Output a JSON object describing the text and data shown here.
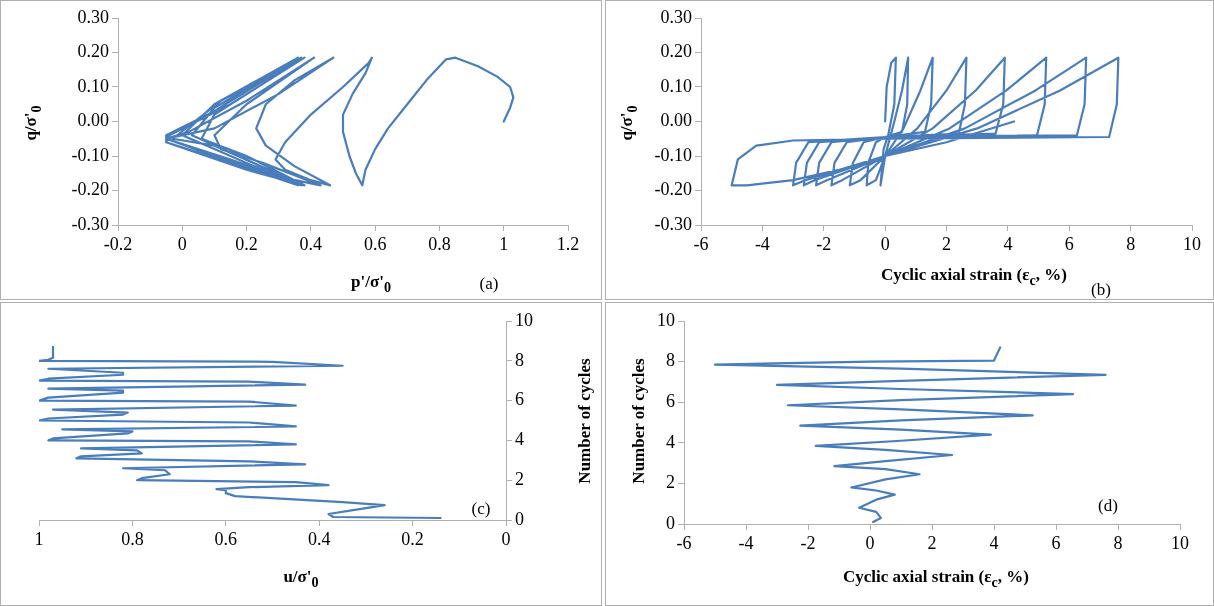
{
  "chart_data": [
    {
      "type": "line",
      "xlabel": "p'/σ'$_{0}$",
      "ylabel": "q/σ'$_{0}$",
      "annotations": [
        "(a)"
      ],
      "marker": "none",
      "grid": false,
      "xlim": [
        -0.2,
        1.2
      ],
      "xticks": [
        -0.2,
        0,
        0.2,
        0.4,
        0.6,
        0.8,
        1,
        1.2
      ],
      "ylim": [
        -0.3,
        0.3
      ],
      "yticks": [
        {
          "value": -0.3,
          "label": "-0.30"
        },
        {
          "value": -0.2,
          "label": "-0.20"
        },
        {
          "value": -0.1,
          "label": "-0.10"
        },
        {
          "value": 0,
          "label": "0.00"
        },
        {
          "value": 0.1,
          "label": "0.10"
        },
        {
          "value": 0.2,
          "label": "0.20"
        },
        {
          "value": 0.3,
          "label": "0.30"
        }
      ],
      "series": [
        {
          "color": "#4a7dbb",
          "x": [
            1.0,
            1.02,
            1.03,
            1.02,
            0.98,
            0.92,
            0.85,
            0.82,
            0.76,
            0.7,
            0.64,
            0.6,
            0.57,
            0.56,
            0.54,
            0.52,
            0.5,
            0.5,
            0.53,
            0.57,
            0.59,
            0.58,
            0.5,
            0.4,
            0.32,
            0.29,
            0.32,
            0.4,
            0.46,
            0.35,
            0.26,
            0.23,
            0.26,
            0.35,
            0.47,
            0.3,
            0.1,
            -0.05,
            0.1,
            0.3,
            0.43,
            0.25,
            0.12,
            0.1,
            0.2,
            0.41,
            0.2,
            0.02,
            -0.05,
            0.15,
            0.38,
            0.2,
            0.06,
            0.1,
            0.38,
            0.15,
            -0.04,
            -0.05,
            0.15,
            0.37,
            0.15,
            0.03,
            0.1,
            0.37,
            0.1,
            -0.05,
            -0.05,
            0.15,
            0.36,
            0.1,
            0.0,
            0.1,
            0.36,
            0.1,
            -0.05,
            -0.05,
            0.2,
            0.38,
            0.1,
            -0.03,
            0.12,
            0.37
          ],
          "values": [
            0.0,
            0.04,
            0.07,
            0.1,
            0.13,
            0.16,
            0.185,
            0.18,
            0.12,
            0.05,
            -0.02,
            -0.08,
            -0.14,
            -0.185,
            -0.15,
            -0.1,
            -0.03,
            0.02,
            0.08,
            0.14,
            0.185,
            0.17,
            0.1,
            0.02,
            -0.06,
            -0.11,
            -0.14,
            -0.17,
            -0.185,
            -0.13,
            -0.07,
            -0.02,
            0.05,
            0.12,
            0.185,
            0.08,
            -0.02,
            -0.05,
            -0.1,
            -0.16,
            -0.185,
            -0.12,
            -0.08,
            -0.04,
            0.05,
            0.185,
            0.06,
            -0.03,
            -0.05,
            -0.11,
            -0.185,
            -0.1,
            -0.05,
            0.02,
            0.185,
            0.05,
            -0.04,
            -0.06,
            -0.12,
            -0.185,
            -0.09,
            -0.04,
            0.04,
            0.185,
            0.03,
            -0.045,
            -0.06,
            -0.12,
            -0.185,
            -0.08,
            -0.04,
            0.05,
            0.185,
            0.03,
            -0.04,
            -0.06,
            -0.14,
            -0.185,
            -0.07,
            -0.05,
            0.06,
            0.18
          ]
        }
      ]
    },
    {
      "type": "line",
      "xlabel": "Cyclic axial strain (ε$_{c}$, %)",
      "ylabel": "q/σ'$_{0}$",
      "annotations": [
        "(b)"
      ],
      "marker": "none",
      "grid": false,
      "xlim": [
        -6,
        10
      ],
      "xticks": [
        -6,
        -4,
        -2,
        0,
        2,
        4,
        6,
        8,
        10
      ],
      "ylim": [
        -0.3,
        0.3
      ],
      "yticks": [
        {
          "value": -0.3,
          "label": "-0.30"
        },
        {
          "value": -0.2,
          "label": "-0.20"
        },
        {
          "value": -0.1,
          "label": "-0.10"
        },
        {
          "value": 0,
          "label": "0.00"
        },
        {
          "value": 0.1,
          "label": "0.10"
        },
        {
          "value": 0.2,
          "label": "0.20"
        },
        {
          "value": 0.3,
          "label": "0.30"
        }
      ],
      "series": [
        {
          "color": "#4a7dbb",
          "x": [
            0,
            0.05,
            0.2,
            0.35,
            0.3,
            0.1,
            -0.05,
            -0.15,
            0,
            0.3,
            0.55,
            0.75,
            0.72,
            0.55,
            0,
            -0.3,
            -0.55,
            -0.6,
            -0.3,
            0,
            0.6,
            1.15,
            1.55,
            1.5,
            1.3,
            0,
            -0.7,
            -1.05,
            -1.15,
            -0.8,
            0,
            1.05,
            2.0,
            2.65,
            2.6,
            2.4,
            0,
            -1.25,
            -1.65,
            -1.75,
            -1.4,
            0,
            1.55,
            2.95,
            3.9,
            3.85,
            3.6,
            0,
            -1.75,
            -2.15,
            -2.25,
            -1.9,
            0,
            2.1,
            3.95,
            5.25,
            5.2,
            4.95,
            0,
            -2.15,
            -2.55,
            -2.65,
            -2.3,
            0,
            2.6,
            4.9,
            6.55,
            6.5,
            6.25,
            0,
            -2.5,
            -2.9,
            -3.0,
            -2.6,
            0,
            3.0,
            5.7,
            7.6,
            7.55,
            7.3,
            0,
            -3,
            -4.2,
            -4.8,
            -5.0,
            -4.5,
            -3,
            -1,
            0,
            2,
            4.2
          ],
          "values": [
            0,
            0.1,
            0.17,
            0.185,
            0.05,
            -0.04,
            -0.08,
            -0.185,
            -0.1,
            0.0,
            0.09,
            0.185,
            0.05,
            -0.03,
            -0.045,
            -0.06,
            -0.12,
            -0.185,
            -0.17,
            -0.1,
            -0.02,
            0.09,
            0.185,
            0.05,
            -0.03,
            -0.045,
            -0.06,
            -0.12,
            -0.185,
            -0.17,
            -0.1,
            -0.02,
            0.09,
            0.185,
            0.05,
            -0.035,
            -0.045,
            -0.06,
            -0.12,
            -0.185,
            -0.17,
            -0.1,
            -0.02,
            0.09,
            0.185,
            0.05,
            -0.035,
            -0.045,
            -0.06,
            -0.12,
            -0.185,
            -0.17,
            -0.1,
            -0.02,
            0.09,
            0.185,
            0.05,
            -0.04,
            -0.045,
            -0.06,
            -0.12,
            -0.185,
            -0.17,
            -0.1,
            -0.02,
            0.09,
            0.185,
            0.05,
            -0.04,
            -0.045,
            -0.06,
            -0.12,
            -0.185,
            -0.17,
            -0.1,
            -0.02,
            0.09,
            0.185,
            0.05,
            -0.045,
            -0.05,
            -0.055,
            -0.07,
            -0.11,
            -0.185,
            -0.185,
            -0.17,
            -0.13,
            -0.1,
            -0.06,
            0.0
          ]
        }
      ]
    },
    {
      "type": "line",
      "xlabel": "u/σ'$_{0}$",
      "ylabel": "Number of cycles",
      "annotations": [
        "(c)"
      ],
      "marker": "none",
      "grid": false,
      "xlim": [
        1,
        0
      ],
      "xticks": [
        1,
        0.8,
        0.6,
        0.4,
        0.2,
        0
      ],
      "ylim": [
        0,
        10
      ],
      "yticks": [
        0,
        2,
        4,
        6,
        8,
        10
      ],
      "series": [
        {
          "color": "#4a7dbb",
          "x": [
            0.14,
            0.37,
            0.38,
            0.3,
            0.26,
            0.35,
            0.58,
            0.6,
            0.6,
            0.62,
            0.55,
            0.38,
            0.45,
            0.79,
            0.78,
            0.72,
            0.73,
            0.82,
            0.43,
            0.55,
            0.92,
            0.91,
            0.78,
            0.79,
            0.91,
            0.45,
            0.55,
            0.98,
            0.97,
            0.81,
            0.8,
            0.95,
            0.45,
            0.55,
            1.0,
            0.98,
            0.82,
            0.81,
            0.97,
            0.45,
            0.55,
            1.0,
            0.98,
            0.82,
            0.82,
            0.98,
            0.43,
            0.55,
            1.0,
            0.98,
            0.82,
            0.82,
            0.98,
            0.35,
            0.5,
            1.0,
            0.98,
            0.97,
            0.97
          ],
          "values": [
            0.1,
            0.15,
            0.3,
            0.6,
            0.75,
            0.9,
            1.2,
            1.35,
            1.5,
            1.55,
            1.65,
            1.75,
            1.9,
            2.0,
            2.1,
            2.3,
            2.5,
            2.6,
            2.8,
            2.95,
            3.1,
            3.2,
            3.35,
            3.5,
            3.6,
            3.8,
            3.95,
            4.0,
            4.1,
            4.35,
            4.45,
            4.55,
            4.7,
            4.9,
            5.0,
            5.1,
            5.3,
            5.4,
            5.55,
            5.75,
            5.95,
            6.0,
            6.15,
            6.4,
            6.5,
            6.6,
            6.8,
            6.95,
            7.0,
            7.1,
            7.3,
            7.4,
            7.6,
            7.75,
            7.95,
            8.0,
            8.05,
            8.15,
            8.7
          ]
        }
      ]
    },
    {
      "type": "line",
      "xlabel": "Cyclic axial strain (ε$_{c}$, %)",
      "ylabel": "Number of cycles",
      "annotations": [
        "(d)"
      ],
      "marker": "none",
      "grid": false,
      "xlim": [
        -6,
        10
      ],
      "xticks": [
        -6,
        -4,
        -2,
        0,
        2,
        4,
        6,
        8,
        10
      ],
      "ylim": [
        0,
        10
      ],
      "yticks": [
        0,
        2,
        4,
        6,
        8,
        10
      ],
      "series": [
        {
          "color": "#4a7dbb",
          "x": [
            0.1,
            0.35,
            0.2,
            -0.35,
            0.2,
            0.8,
            0.2,
            -0.6,
            0.5,
            1.6,
            0.5,
            -1.15,
            0.5,
            2.65,
            0.5,
            -1.75,
            1,
            3.9,
            1,
            -2.25,
            1,
            5.25,
            1,
            -2.65,
            1,
            6.55,
            1,
            -3.0,
            1,
            7.6,
            1,
            -5.0,
            0,
            4.0,
            4.2
          ],
          "values": [
            0.1,
            0.3,
            0.6,
            0.8,
            1.2,
            1.45,
            1.65,
            1.8,
            2.2,
            2.45,
            2.7,
            2.85,
            3.1,
            3.4,
            3.65,
            3.85,
            4.1,
            4.4,
            4.65,
            4.85,
            5.1,
            5.35,
            5.65,
            5.85,
            6.1,
            6.4,
            6.65,
            6.85,
            7.05,
            7.35,
            7.65,
            7.85,
            8.0,
            8.05,
            8.7
          ]
        }
      ]
    }
  ]
}
